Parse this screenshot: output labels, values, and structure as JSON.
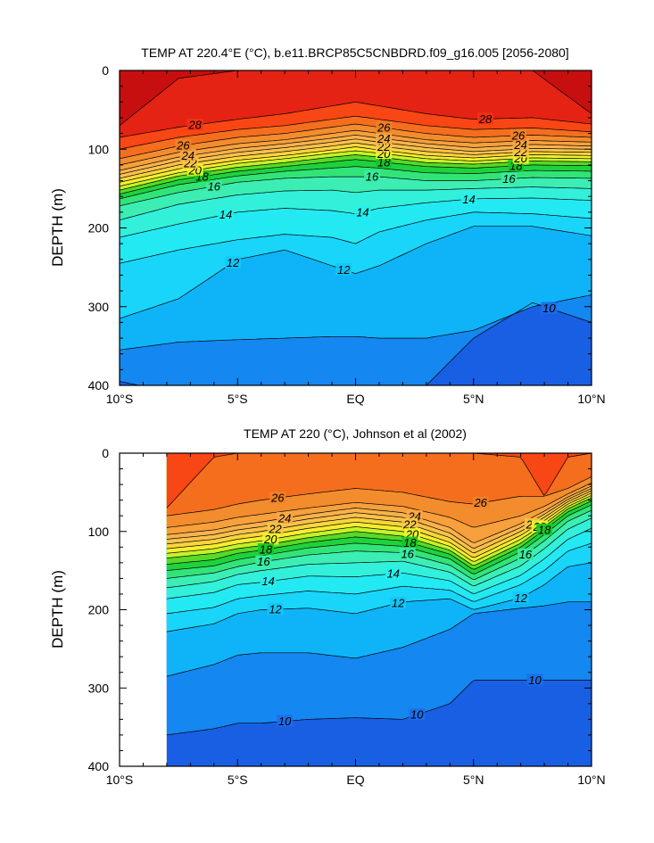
{
  "chart_data": [
    {
      "type": "contour",
      "title": "TEMP AT 220.4°E (°C), b.e11.BRCP85C5CNBDRD.f09_g16.005 [2056-2080]",
      "xlabel": "",
      "ylabel": "DEPTH (m)",
      "xlim": [
        -10,
        10
      ],
      "ylim": [
        400,
        0
      ],
      "x_ticks": [
        -10,
        -5,
        0,
        5,
        10
      ],
      "x_tick_labels": [
        "10°S",
        "5°S",
        "EQ",
        "5°N",
        "10°N"
      ],
      "y_ticks": [
        0,
        100,
        200,
        300,
        400
      ],
      "y_tick_labels": [
        "0",
        "100",
        "200",
        "300",
        "400"
      ],
      "data_start_lat": -10,
      "surface_depth": 5,
      "contour_interval": 1,
      "isotherm_depths_m": {
        "lat": [
          -10,
          -7.5,
          -5,
          -3,
          -1,
          0,
          1,
          3,
          5,
          7.5,
          10
        ],
        "levels": [
          {
            "temp": 29,
            "depths": [
              70,
              10,
              0,
              0,
              0,
              0,
              0,
              0,
              0,
              0,
              55
            ]
          },
          {
            "temp": 28,
            "depths": [
              85,
              72,
              62,
              55,
              45,
              40,
              45,
              55,
              62,
              60,
              68
            ]
          },
          {
            "temp": 27,
            "depths": [
              100,
              85,
              75,
              70,
              62,
              58,
              62,
              70,
              75,
              73,
              78
            ]
          },
          {
            "temp": 26,
            "depths": [
              112,
              96,
              85,
              80,
              72,
              68,
              72,
              80,
              85,
              82,
              85
            ]
          },
          {
            "temp": 25,
            "depths": [
              120,
              104,
              93,
              88,
              80,
              76,
              80,
              88,
              92,
              89,
              91
            ]
          },
          {
            "temp": 24,
            "depths": [
              127,
              110,
              99,
              93,
              86,
              82,
              86,
              93,
              98,
              94,
              96
            ]
          },
          {
            "temp": 23,
            "depths": [
              132,
              115,
              104,
              98,
              91,
              87,
              91,
              98,
              103,
              99,
              100
            ]
          },
          {
            "temp": 22,
            "depths": [
              137,
              120,
              109,
              103,
              96,
              92,
              96,
              103,
              107,
              103,
              104
            ]
          },
          {
            "temp": 21,
            "depths": [
              142,
              125,
              114,
              108,
              101,
              97,
              101,
              108,
              111,
              107,
              108
            ]
          },
          {
            "temp": 20,
            "depths": [
              147,
              130,
              118,
              112,
              105,
              102,
              105,
              112,
              115,
              111,
              112
            ]
          },
          {
            "temp": 19,
            "depths": [
              152,
              134,
              123,
              117,
              110,
              107,
              110,
              117,
              119,
              115,
              116
            ]
          },
          {
            "temp": 18,
            "depths": [
              157,
              139,
              128,
              122,
              116,
              113,
              116,
              122,
              124,
              120,
              121
            ]
          },
          {
            "temp": 17,
            "depths": [
              163,
              145,
              134,
              128,
              124,
              122,
              124,
              130,
              131,
              127,
              128
            ]
          },
          {
            "temp": 16,
            "depths": [
              172,
              155,
              142,
              137,
              135,
              135,
              135,
              140,
              140,
              136,
              137
            ]
          },
          {
            "temp": 15,
            "depths": [
              190,
              170,
              158,
              153,
              152,
              155,
              152,
              152,
              150,
              148,
              150
            ]
          },
          {
            "temp": 14,
            "depths": [
              212,
              195,
              180,
              175,
              178,
              182,
              175,
              168,
              163,
              162,
              165
            ]
          },
          {
            "temp": 13,
            "depths": [
              245,
              228,
              215,
              208,
              212,
              220,
              205,
              190,
              180,
              182,
              188
            ]
          },
          {
            "temp": 12,
            "depths": [
              315,
              290,
              240,
              228,
              248,
              258,
              248,
              220,
              198,
              198,
              210
            ]
          },
          {
            "temp": 11,
            "depths": [
              355,
              345,
              342,
              340,
              338,
              338,
              340,
              340,
              330,
              300,
              285
            ]
          },
          {
            "temp": 10,
            "depths": [
              395,
              410,
              420,
              420,
              420,
              420,
              420,
              400,
              340,
              295,
              320
            ]
          }
        ]
      },
      "contour_labels": [
        "12",
        "12",
        "14",
        "14",
        "14",
        "16",
        "16",
        "16",
        "18",
        "18",
        "18",
        "20",
        "20",
        "20",
        "22",
        "22",
        "22",
        "24",
        "24",
        "24",
        "26",
        "26",
        "26",
        "28",
        "28",
        "10"
      ]
    },
    {
      "type": "contour",
      "title": "TEMP AT 220 (°C), Johnson et al (2002)",
      "xlabel": "",
      "ylabel": "DEPTH (m)",
      "xlim": [
        -10,
        10
      ],
      "ylim": [
        400,
        0
      ],
      "x_ticks": [
        -10,
        -5,
        0,
        5,
        10
      ],
      "x_tick_labels": [
        "10°S",
        "5°S",
        "EQ",
        "5°N",
        "10°N"
      ],
      "y_ticks": [
        0,
        100,
        200,
        300,
        400
      ],
      "y_tick_labels": [
        "0",
        "100",
        "200",
        "300",
        "400"
      ],
      "data_start_lat": -8,
      "surface_depth": 5,
      "contour_interval": 1,
      "isotherm_depths_m": {
        "lat": [
          -8,
          -6,
          -5,
          -4,
          -2,
          0,
          2,
          4,
          5,
          7,
          8,
          9,
          10
        ],
        "levels": [
          {
            "temp": 27,
            "depths": [
              70,
              5,
              0,
              0,
              0,
              0,
              0,
              0,
              0,
              5,
              55,
              5,
              0
            ]
          },
          {
            "temp": 26,
            "depths": [
              80,
              72,
              65,
              60,
              52,
              45,
              50,
              62,
              65,
              55,
              55,
              45,
              30
            ]
          },
          {
            "temp": 25,
            "depths": [
              95,
              88,
              82,
              78,
              70,
              63,
              68,
              82,
              95,
              80,
              68,
              52,
              38
            ]
          },
          {
            "temp": 24,
            "depths": [
              104,
              98,
              92,
              88,
              78,
              70,
              76,
              95,
              115,
              90,
              74,
              56,
              42
            ]
          },
          {
            "temp": 23,
            "depths": [
              110,
              104,
              98,
              94,
              84,
              76,
              82,
              102,
              122,
              95,
              78,
              59,
              45
            ]
          },
          {
            "temp": 22,
            "depths": [
              116,
              110,
              104,
              100,
              90,
              82,
              88,
              108,
              128,
              100,
              82,
              62,
              48
            ]
          },
          {
            "temp": 21,
            "depths": [
              122,
              116,
              110,
              106,
              96,
              88,
              94,
              114,
              134,
              105,
              86,
              65,
              51
            ]
          },
          {
            "temp": 20,
            "depths": [
              128,
              122,
              116,
              112,
              102,
              94,
              100,
              119,
              139,
              110,
              90,
              68,
              54
            ]
          },
          {
            "temp": 19,
            "depths": [
              134,
              128,
              122,
              118,
              108,
              100,
              106,
              124,
              144,
              115,
              94,
              71,
              57
            ]
          },
          {
            "temp": 18,
            "depths": [
              142,
              136,
              128,
              124,
              114,
              107,
              112,
              129,
              149,
              120,
              98,
              75,
              61
            ]
          },
          {
            "temp": 17,
            "depths": [
              150,
              144,
              136,
              131,
              121,
              115,
              119,
              135,
              155,
              126,
              104,
              80,
              66
            ]
          },
          {
            "temp": 16,
            "depths": [
              160,
              153,
              145,
              139,
              130,
              125,
              127,
              143,
              162,
              134,
              112,
              87,
              73
            ]
          },
          {
            "temp": 15,
            "depths": [
              172,
              164,
              155,
              150,
              142,
              140,
              138,
              152,
              170,
              144,
              122,
              97,
              83
            ]
          },
          {
            "temp": 14,
            "depths": [
              186,
              178,
              168,
              165,
              157,
              158,
              153,
              163,
              180,
              156,
              135,
              110,
              96
            ]
          },
          {
            "temp": 13,
            "depths": [
              205,
              197,
              186,
              182,
              176,
              180,
              170,
              175,
              190,
              168,
              150,
              125,
              115
            ]
          },
          {
            "temp": 12,
            "depths": [
              228,
              218,
              205,
              200,
              198,
              205,
              190,
              186,
              200,
              185,
              168,
              145,
              140
            ]
          },
          {
            "temp": 11,
            "depths": [
              285,
              270,
              258,
              255,
              255,
              262,
              248,
              225,
              205,
              198,
              195,
              190,
              190
            ]
          },
          {
            "temp": 10,
            "depths": [
              360,
              352,
              345,
              345,
              340,
              338,
              340,
              320,
              290,
              290,
              290,
              290,
              290
            ]
          },
          {
            "temp": 9,
            "depths": [
              420,
              420,
              420,
              420,
              420,
              420,
              420,
              420,
              420,
              420,
              420,
              420,
              420
            ]
          }
        ]
      },
      "contour_labels": [
        "26",
        "26",
        "24",
        "24",
        "22",
        "22",
        "22",
        "20",
        "20",
        "20",
        "18",
        "18",
        "18",
        "16",
        "16",
        "16",
        "14",
        "14",
        "12",
        "12",
        "12",
        "10",
        "10",
        "10"
      ]
    }
  ]
}
